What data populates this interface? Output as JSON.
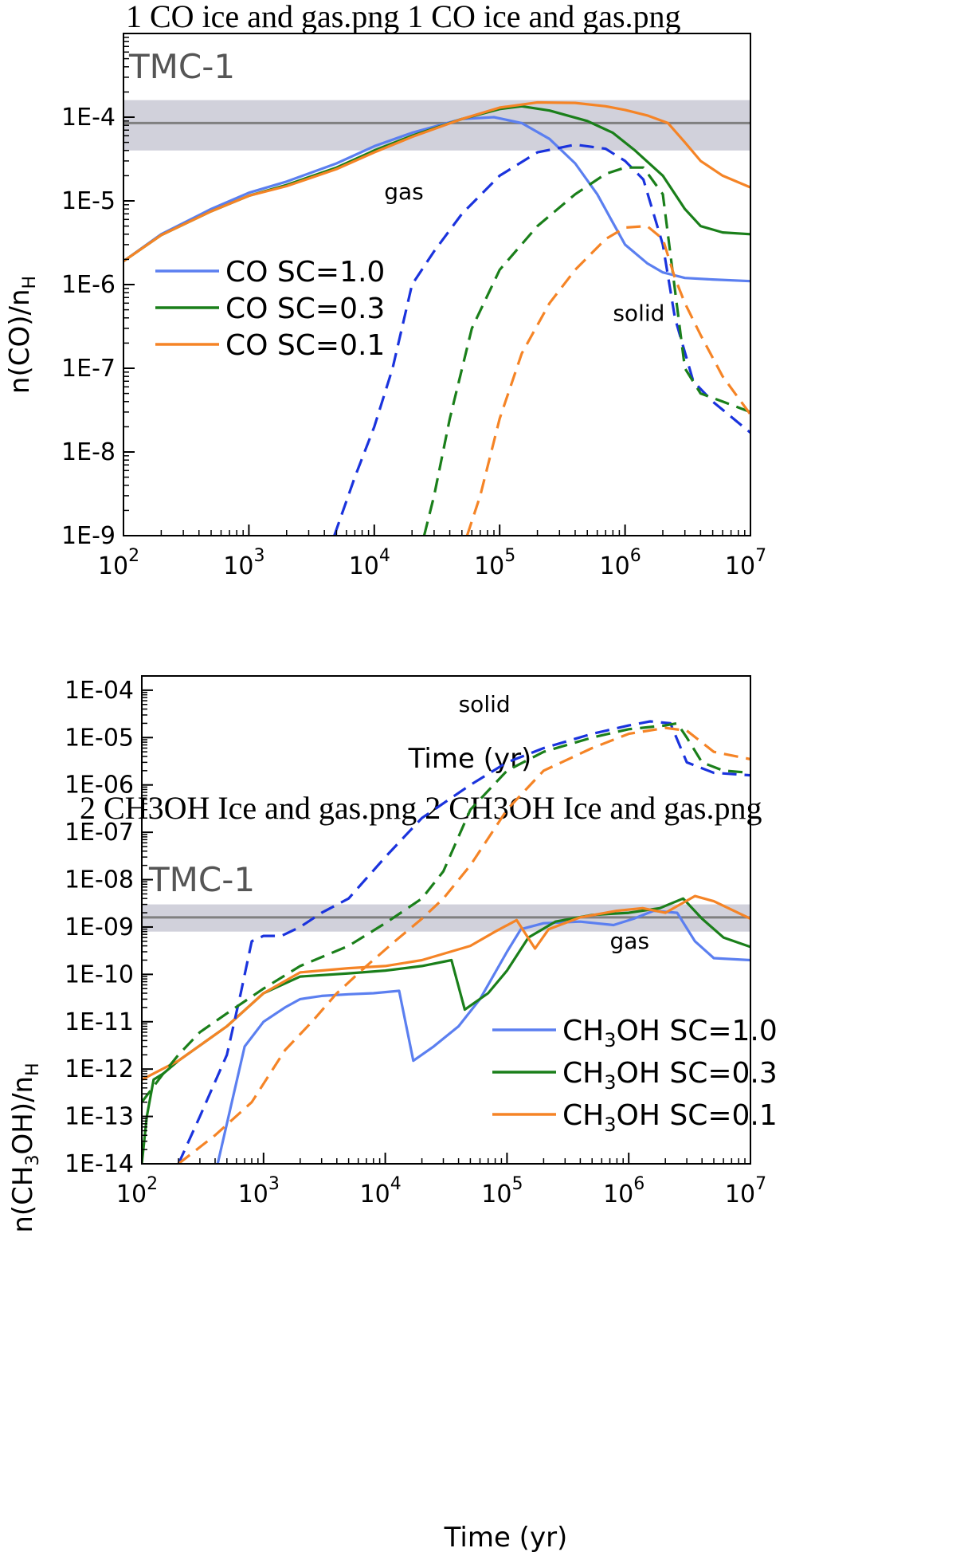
{
  "chart_data": [
    {
      "type": "line",
      "title": "1 CO ice and gas.png 1 CO ice and gas.png",
      "xlabel": "Time (yr)",
      "ylabel_main": "n(CO)/n",
      "ylabel_sub": "H",
      "xscale": "log",
      "yscale": "log",
      "xlim": [
        100,
        10000000
      ],
      "ylim": [
        1e-09,
        0.001
      ],
      "x_ticks": [
        {
          "value": 100,
          "base": "10",
          "exp": "2"
        },
        {
          "value": 1000,
          "base": "10",
          "exp": "3"
        },
        {
          "value": 10000,
          "base": "10",
          "exp": "4"
        },
        {
          "value": 100000,
          "base": "10",
          "exp": "5"
        },
        {
          "value": 1000000,
          "base": "10",
          "exp": "6"
        },
        {
          "value": 10000000,
          "base": "10",
          "exp": "7"
        }
      ],
      "y_ticks": [
        {
          "value": 1e-09,
          "label": "1E-9"
        },
        {
          "value": 1e-08,
          "label": "1E-8"
        },
        {
          "value": 1e-07,
          "label": "1E-7"
        },
        {
          "value": 1e-06,
          "label": "1E-6"
        },
        {
          "value": 1e-05,
          "label": "1E-5"
        },
        {
          "value": 0.0001,
          "label": "1E-4"
        }
      ],
      "reference": {
        "label": "TMC-1",
        "value": 8.5e-05,
        "band": [
          4e-05,
          0.00016
        ]
      },
      "annotations": [
        {
          "text": "gas",
          "x": 12000,
          "y": 1.05e-05
        },
        {
          "text": "solid",
          "x": 800000,
          "y": 3.7e-07
        }
      ],
      "legend": {
        "position": "middle-left",
        "entries": [
          {
            "label": "CO SC=1.0",
            "color": "#5b7ff0"
          },
          {
            "label": "CO SC=0.3",
            "color": "#1a7f1a"
          },
          {
            "label": "CO SC=0.1",
            "color": "#f58426"
          }
        ]
      },
      "series": [
        {
          "name": "CO SC=1.0",
          "phase": "gas",
          "dash": false,
          "color": "#5b7ff0",
          "x": [
            100,
            200,
            500,
            1000,
            2000,
            5000,
            10000,
            20000,
            50000,
            90000,
            150000,
            250000,
            400000,
            600000,
            800000,
            1000000,
            1500000,
            2000000,
            3000000,
            5000000,
            10000000
          ],
          "y": [
            1.9e-06,
            4e-06,
            8e-06,
            1.25e-05,
            1.7e-05,
            2.8e-05,
            4.5e-05,
            6.5e-05,
            9.5e-05,
            0.0001,
            8.5e-05,
            5.5e-05,
            2.8e-05,
            1.2e-05,
            5.5e-06,
            3e-06,
            1.8e-06,
            1.4e-06,
            1.2e-06,
            1.15e-06,
            1.1e-06
          ]
        },
        {
          "name": "CO SC=0.3",
          "phase": "gas",
          "dash": false,
          "color": "#1a7f1a",
          "x": [
            100,
            200,
            500,
            1000,
            2000,
            5000,
            10000,
            20000,
            50000,
            100000,
            150000,
            250000,
            500000,
            800000,
            1200000,
            2000000,
            3000000,
            4000000,
            6000000,
            10000000
          ],
          "y": [
            1.9e-06,
            3.9e-06,
            7.5e-06,
            1.15e-05,
            1.55e-05,
            2.5e-05,
            4e-05,
            6e-05,
            9.5e-05,
            0.000125,
            0.000135,
            0.00012,
            9e-05,
            6.5e-05,
            4e-05,
            2e-05,
            8e-06,
            5e-06,
            4.2e-06,
            4e-06
          ]
        },
        {
          "name": "CO SC=0.1",
          "phase": "gas",
          "dash": false,
          "color": "#f58426",
          "x": [
            100,
            200,
            500,
            1000,
            2000,
            5000,
            10000,
            20000,
            50000,
            100000,
            200000,
            400000,
            700000,
            1000000,
            1500000,
            2200000,
            3000000,
            4000000,
            6000000,
            10000000
          ],
          "y": [
            1.9e-06,
            3.9e-06,
            7.5e-06,
            1.15e-05,
            1.5e-05,
            2.4e-05,
            3.8e-05,
            5.8e-05,
            9.5e-05,
            0.00013,
            0.00015,
            0.000148,
            0.000135,
            0.000122,
            0.000105,
            8.5e-05,
            5e-05,
            3e-05,
            2e-05,
            1.45e-05
          ]
        },
        {
          "name": "CO SC=1.0",
          "phase": "solid",
          "dash": true,
          "color": "#1a33dd",
          "x": [
            4800,
            7000,
            10000,
            14000,
            20000,
            30000,
            50000,
            100000,
            200000,
            400000,
            700000,
            1000000,
            1400000,
            2000000,
            2500000,
            3500000,
            5000000,
            10000000
          ],
          "y": [
            1e-09,
            5e-09,
            2e-08,
            1e-07,
            1e-06,
            2.5e-06,
            7e-06,
            2e-05,
            3.8e-05,
            4.7e-05,
            4.2e-05,
            3e-05,
            1.8e-05,
            3e-06,
            4e-07,
            7e-08,
            4e-08,
            1.7e-08
          ]
        },
        {
          "name": "CO SC=0.3",
          "phase": "solid",
          "dash": true,
          "color": "#1a7f1a",
          "x": [
            25000,
            30000,
            40000,
            60000,
            100000,
            200000,
            400000,
            700000,
            1000000,
            1400000,
            2000000,
            3000000,
            4000000,
            6000000,
            10000000
          ],
          "y": [
            1e-09,
            3e-09,
            2.5e-08,
            3e-07,
            1.5e-06,
            5e-06,
            1.2e-05,
            2.1e-05,
            2.5e-05,
            2.5e-05,
            1.2e-05,
            1e-07,
            5e-08,
            4e-08,
            3e-08
          ]
        },
        {
          "name": "CO SC=0.1",
          "phase": "solid",
          "dash": true,
          "color": "#f58426",
          "x": [
            55000,
            70000,
            100000,
            150000,
            250000,
            400000,
            700000,
            1000000,
            1500000,
            2000000,
            2500000,
            3000000,
            4000000,
            6000000,
            10000000
          ],
          "y": [
            1e-09,
            3e-09,
            2.5e-08,
            1.5e-07,
            6e-07,
            1.5e-06,
            3.5e-06,
            4.8e-06,
            5e-06,
            3.5e-06,
            1.2e-06,
            6e-07,
            2.5e-07,
            8e-08,
            2.8e-08
          ]
        }
      ]
    },
    {
      "type": "line",
      "title": "2 CH3OH Ice and gas.png 2 CH3OH Ice and gas.png",
      "xlabel": "Time (yr)",
      "ylabel_pre": "n(CH",
      "ylabel_sub1": "3",
      "ylabel_post": "OH)/n",
      "ylabel_sub2": "H",
      "xscale": "log",
      "yscale": "log",
      "xlim": [
        100,
        10000000
      ],
      "ylim": [
        1e-14,
        0.0002
      ],
      "x_ticks": [
        {
          "value": 100,
          "base": "10",
          "exp": "2"
        },
        {
          "value": 1000,
          "base": "10",
          "exp": "3"
        },
        {
          "value": 10000,
          "base": "10",
          "exp": "4"
        },
        {
          "value": 100000,
          "base": "10",
          "exp": "5"
        },
        {
          "value": 1000000,
          "base": "10",
          "exp": "6"
        },
        {
          "value": 10000000,
          "base": "10",
          "exp": "7"
        }
      ],
      "y_ticks": [
        {
          "value": 1e-14,
          "label": "1E-14"
        },
        {
          "value": 1e-13,
          "label": "1E-13"
        },
        {
          "value": 1e-12,
          "label": "1E-12"
        },
        {
          "value": 1e-11,
          "label": "1E-11"
        },
        {
          "value": 1e-10,
          "label": "1E-10"
        },
        {
          "value": 1e-09,
          "label": "1E-09"
        },
        {
          "value": 1e-08,
          "label": "1E-08"
        },
        {
          "value": 1e-07,
          "label": "1E-07"
        },
        {
          "value": 1e-06,
          "label": "1E-06"
        },
        {
          "value": 1e-05,
          "label": "1E-05"
        },
        {
          "value": 0.0001,
          "label": "1E-04"
        }
      ],
      "reference": {
        "label": "TMC-1",
        "value": 1.6e-09,
        "band": [
          8e-10,
          3e-09
        ]
      },
      "annotations": [
        {
          "text": "solid",
          "x": 40000,
          "y": 3.5e-05
        },
        {
          "text": "gas",
          "x": 700000,
          "y": 3.5e-10
        }
      ],
      "legend": {
        "position": "bottom-right",
        "entries": [
          {
            "label_pre": "CH",
            "label_sub": "3",
            "label_post": "OH SC=1.0",
            "color": "#5b7ff0"
          },
          {
            "label_pre": "CH",
            "label_sub": "3",
            "label_post": "OH SC=0.3",
            "color": "#1a7f1a"
          },
          {
            "label_pre": "CH",
            "label_sub": "3",
            "label_post": "OH SC=0.1",
            "color": "#f58426"
          }
        ]
      },
      "series": [
        {
          "name": "CH3OH SC=1.0",
          "phase": "gas",
          "dash": false,
          "color": "#5b7ff0",
          "x": [
            420,
            700,
            1000,
            1500,
            2000,
            3000,
            5000,
            8000,
            13000,
            17000,
            25000,
            40000,
            60000,
            100000,
            130000,
            200000,
            400000,
            750000,
            1100000,
            1600000,
            2500000,
            3500000,
            5000000,
            10000000
          ],
          "y": [
            1e-14,
            3e-12,
            1e-11,
            2e-11,
            3e-11,
            3.5e-11,
            3.8e-11,
            4e-11,
            4.5e-11,
            1.5e-12,
            3e-12,
            8e-12,
            3e-11,
            3e-10,
            9e-10,
            1.2e-09,
            1.3e-09,
            1.1e-09,
            1.5e-09,
            2.2e-09,
            2e-09,
            5e-10,
            2.2e-10,
            2e-10
          ]
        },
        {
          "name": "CH3OH SC=0.3",
          "phase": "gas",
          "dash": false,
          "color": "#1a7f1a",
          "x": [
            100,
            110,
            125,
            150,
            200,
            500,
            1000,
            2000,
            5000,
            10000,
            20000,
            35000,
            45000,
            70000,
            100000,
            150000,
            250000,
            500000,
            1000000,
            1800000,
            2800000,
            4000000,
            6000000,
            10000000
          ],
          "y": [
            1e-14,
            1e-13,
            6e-13,
            8e-13,
            1.5e-12,
            8e-12,
            4e-11,
            9e-11,
            1.05e-10,
            1.2e-10,
            1.5e-10,
            2e-10,
            1.8e-11,
            4e-11,
            1.2e-10,
            6e-10,
            1.3e-09,
            1.8e-09,
            2e-09,
            2.5e-09,
            4e-09,
            1.5e-09,
            6e-10,
            3.8e-10
          ]
        },
        {
          "name": "CH3OH SC=0.1",
          "phase": "gas",
          "dash": false,
          "color": "#f58426",
          "x": [
            100,
            200,
            500,
            1000,
            2000,
            5000,
            10000,
            20000,
            50000,
            80000,
            120000,
            170000,
            220000,
            400000,
            800000,
            1300000,
            2000000,
            3500000,
            5000000,
            10000000
          ],
          "y": [
            6e-13,
            1.5e-12,
            8e-12,
            4e-11,
            1.1e-10,
            1.35e-10,
            1.5e-10,
            2e-10,
            4e-10,
            8e-10,
            1.4e-09,
            3.5e-10,
            9e-10,
            1.6e-09,
            2.2e-09,
            2.5e-09,
            2e-09,
            4.5e-09,
            3.5e-09,
            1.5e-09
          ]
        },
        {
          "name": "CH3OH SC=1.0",
          "phase": "solid",
          "dash": true,
          "color": "#1a33dd",
          "x": [
            200,
            300,
            500,
            650,
            800,
            1000,
            1400,
            2000,
            3000,
            5000,
            10000,
            20000,
            50000,
            100000,
            200000,
            500000,
            1000000,
            1500000,
            2200000,
            3000000,
            5000000,
            10000000
          ],
          "y": [
            1e-14,
            1e-13,
            2e-12,
            4e-11,
            5e-10,
            6.5e-10,
            6.5e-10,
            1e-09,
            2e-09,
            4e-09,
            3e-08,
            2e-07,
            1e-06,
            3e-06,
            6e-06,
            1.2e-05,
            1.8e-05,
            2.2e-05,
            2e-05,
            3e-06,
            1.8e-06,
            1.6e-06
          ]
        },
        {
          "name": "CH3OH SC=0.3",
          "phase": "solid",
          "dash": true,
          "color": "#1a7f1a",
          "x": [
            100,
            150,
            200,
            300,
            500,
            1000,
            2000,
            5000,
            10000,
            20000,
            30000,
            50000,
            100000,
            200000,
            500000,
            1000000,
            2000000,
            2500000,
            3000000,
            4000000,
            6000000,
            10000000
          ],
          "y": [
            2e-13,
            8e-13,
            2e-12,
            6e-12,
            1.5e-11,
            5e-11,
            1.5e-10,
            4e-10,
            1.2e-09,
            4e-09,
            1.5e-08,
            3e-07,
            2e-06,
            5e-06,
            1e-05,
            1.5e-05,
            1.8e-05,
            2e-05,
            1e-05,
            3e-06,
            2e-06,
            1.8e-06
          ]
        },
        {
          "name": "CH3OH SC=0.1",
          "phase": "solid",
          "dash": true,
          "color": "#f58426",
          "x": [
            200,
            400,
            800,
            1500,
            2500,
            4000,
            7000,
            12000,
            20000,
            30000,
            50000,
            100000,
            200000,
            500000,
            1000000,
            2000000,
            3000000,
            5000000,
            10000000
          ],
          "y": [
            1e-14,
            4e-14,
            2e-13,
            2.5e-12,
            1e-11,
            4e-11,
            1.5e-10,
            5e-10,
            1.5e-09,
            4e-09,
            2e-08,
            3e-07,
            2e-06,
            6e-06,
            1.2e-05,
            1.6e-05,
            1.4e-05,
            5e-06,
            3.5e-06
          ]
        }
      ]
    }
  ]
}
